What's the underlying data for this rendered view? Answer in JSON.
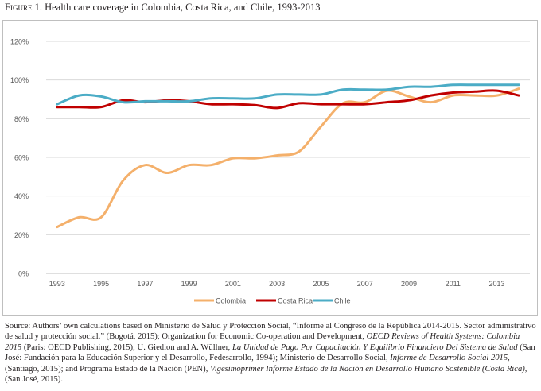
{
  "figure": {
    "label": "Figure 1.",
    "title": "Health care coverage in Colombia, Costa Rica, and Chile, 1993-2013"
  },
  "chart_data": {
    "type": "line",
    "title": "",
    "xlabel": "",
    "ylabel": "",
    "ylim": [
      0,
      120
    ],
    "yticks": [
      "0%",
      "20%",
      "40%",
      "60%",
      "80%",
      "100%",
      "120%"
    ],
    "xticks": [
      "1993",
      "1995",
      "1997",
      "1999",
      "2001",
      "2003",
      "2005",
      "2007",
      "2009",
      "2011",
      "2013"
    ],
    "x": [
      1993,
      1994,
      1995,
      1996,
      1997,
      1998,
      1999,
      2000,
      2001,
      2002,
      2003,
      2004,
      2005,
      2006,
      2007,
      2008,
      2009,
      2010,
      2011,
      2012,
      2013,
      2014
    ],
    "grid": "horizontal",
    "legend": "bottom",
    "series": [
      {
        "name": "Colombia",
        "color": "#f4b06b",
        "values": [
          24,
          29,
          29,
          48,
          56,
          52,
          56,
          56,
          59.5,
          59.5,
          61,
          63,
          76,
          88,
          88.5,
          94.5,
          91.5,
          88.5,
          92,
          92,
          92,
          95.5
        ]
      },
      {
        "name": "Costa Rica",
        "color": "#c00000",
        "values": [
          86,
          86,
          86,
          89.5,
          88.5,
          89.5,
          89,
          87.5,
          87.5,
          87,
          85.5,
          88,
          87.5,
          87.5,
          87.5,
          88.5,
          89.5,
          92,
          93.5,
          94,
          94.5,
          92
        ]
      },
      {
        "name": "Chile",
        "color": "#4bacc6",
        "values": [
          87.5,
          92,
          91.5,
          88.5,
          89,
          89,
          89,
          90.5,
          90.5,
          90.5,
          92.5,
          92.5,
          92.5,
          95,
          95,
          95,
          96.5,
          96.5,
          97.5,
          97.5,
          97.5,
          97.5
        ]
      }
    ]
  },
  "source": {
    "s1": "Source: Authors’ own calculations based on Ministerio de Salud y Protección Social, “Informe al Congreso de la República 2014-2015. Sector administrativo de salud y protección social.” (Bogotá, 2015); Organization for Economic Co-operation and Development, ",
    "i1": "OECD Reviews of Health Systems: Colombia 2015",
    "s2": " (Paris: OECD Publishing, 2015); U. Giedion and A. Wüllner, ",
    "i2": "La Unidad de Pago Por Capacitación Y Equilibrio Financiero Del Sistema de Salud",
    "s3": " (San José: Fundación para la Educación Superior y el Desarrollo, Fedesarrollo, 1994); Ministerio de Desarrollo Social, ",
    "i3": "Informe de Desarrollo Social 2015,",
    "s4": " (Santiago, 2015); and Programa Estado de la Nación (PEN), ",
    "i4": "Vigesimoprimer Informe Estado de la Nación en Desarrollo Humano Sostenible (Costa Rica),",
    "s5": " (San José, 2015)."
  }
}
